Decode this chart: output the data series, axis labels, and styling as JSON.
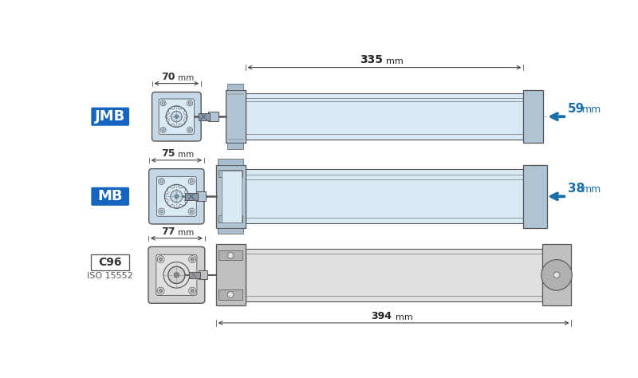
{
  "bg_color": "#ffffff",
  "blue_fill": "#c5d8e8",
  "blue_dark": "#a8bece",
  "blue_cap": "#b0c4d4",
  "blue_light": "#daeaf5",
  "gray_fill": "#d0d0d0",
  "gray_dark": "#b0b0b0",
  "gray_cap": "#c0c0c0",
  "gray_light": "#e0e0e0",
  "line_color": "#555555",
  "dim_color": "#333333",
  "arrow_blue": "#1a6fa8",
  "label_blue_bg": "#1565c0",
  "label_blue_text": "#ffffff",
  "jmb_label": "JMB",
  "mb_label": "MB",
  "c96_label": "C96",
  "iso_label": "ISO 15552",
  "dim_335": "335",
  "dim_394": "394",
  "dim_59": "59",
  "dim_38": "38",
  "dim_jmb": "70",
  "dim_mb": "75",
  "dim_c96": "77",
  "mm": "mm"
}
